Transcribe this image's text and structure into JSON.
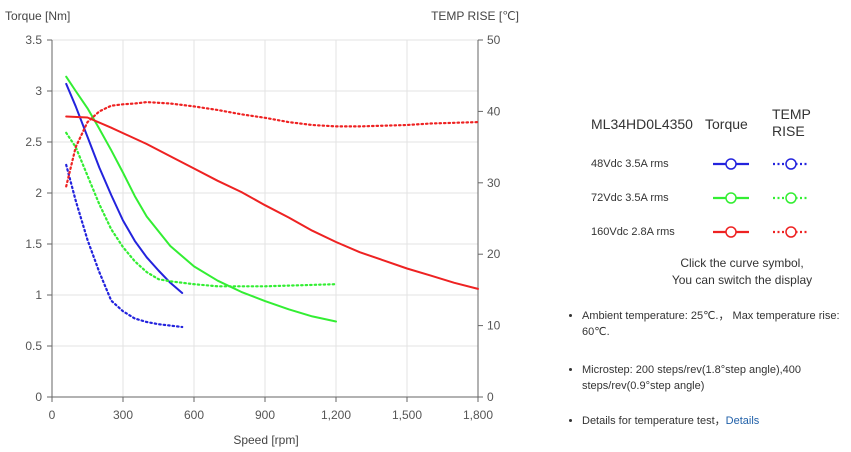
{
  "chart_data": {
    "type": "line",
    "xlabel": "Speed [rpm]",
    "ylabel_left": "Torque  [Nm]",
    "ylabel_right": "TEMP RISE [℃]",
    "xlim": [
      0,
      1800
    ],
    "ylim_left": [
      0,
      3.5
    ],
    "ylim_right": [
      0,
      50
    ],
    "x_ticks": [
      0,
      300,
      600,
      900,
      1200,
      1500,
      1800
    ],
    "x_tick_labels": [
      "0",
      "300",
      "600",
      "900",
      "1,200",
      "1,500",
      "1,800"
    ],
    "y_left_ticks": [
      0,
      0.5,
      1,
      1.5,
      2,
      2.5,
      3,
      3.5
    ],
    "y_left_tick_labels": [
      "0",
      "0.5",
      "1",
      "1.5",
      "2",
      "2.5",
      "3",
      "3.5"
    ],
    "y_right_ticks": [
      0,
      10,
      20,
      30,
      40,
      50
    ],
    "y_right_tick_labels": [
      "0",
      "10",
      "20",
      "30",
      "40",
      "50"
    ],
    "grid": true,
    "series": [
      {
        "axis": "left",
        "style": "solid",
        "color": "#2323dd",
        "x": [
          60,
          100,
          150,
          200,
          250,
          300,
          350,
          400,
          450,
          500,
          550
        ],
        "y": [
          3.07,
          2.85,
          2.55,
          2.25,
          1.98,
          1.73,
          1.53,
          1.37,
          1.24,
          1.12,
          1.02
        ]
      },
      {
        "axis": "right",
        "style": "dotted",
        "color": "#2323dd",
        "x": [
          60,
          100,
          150,
          200,
          250,
          300,
          350,
          400,
          450,
          500,
          550
        ],
        "y": [
          32.5,
          27.5,
          22.0,
          17.5,
          13.5,
          12.0,
          11.0,
          10.5,
          10.2,
          10.0,
          9.8
        ]
      },
      {
        "axis": "left",
        "style": "solid",
        "color": "#33ee33",
        "x": [
          60,
          100,
          150,
          200,
          250,
          300,
          350,
          400,
          500,
          600,
          700,
          800,
          900,
          1000,
          1100,
          1200
        ],
        "y": [
          3.14,
          3.0,
          2.83,
          2.63,
          2.42,
          2.2,
          1.97,
          1.77,
          1.48,
          1.28,
          1.14,
          1.03,
          0.94,
          0.86,
          0.79,
          0.74
        ]
      },
      {
        "axis": "right",
        "style": "dotted",
        "color": "#33ee33",
        "x": [
          60,
          100,
          150,
          200,
          250,
          300,
          350,
          400,
          450,
          500,
          600,
          700,
          800,
          900,
          1000,
          1100,
          1200
        ],
        "y": [
          37.0,
          35.0,
          31.0,
          27.0,
          23.5,
          21.0,
          19.0,
          17.5,
          16.5,
          16.2,
          15.8,
          15.5,
          15.5,
          15.5,
          15.6,
          15.7,
          15.8
        ]
      },
      {
        "axis": "left",
        "style": "solid",
        "color": "#ee2222",
        "x": [
          60,
          150,
          250,
          400,
          500,
          600,
          700,
          800,
          900,
          1000,
          1100,
          1200,
          1300,
          1400,
          1500,
          1600,
          1700,
          1800
        ],
        "y": [
          2.75,
          2.74,
          2.64,
          2.48,
          2.36,
          2.24,
          2.12,
          2.01,
          1.88,
          1.76,
          1.63,
          1.52,
          1.42,
          1.34,
          1.26,
          1.19,
          1.12,
          1.06
        ]
      },
      {
        "axis": "right",
        "style": "dotted",
        "color": "#ee2222",
        "x": [
          60,
          100,
          150,
          200,
          250,
          300,
          350,
          400,
          500,
          600,
          700,
          800,
          900,
          1000,
          1100,
          1200,
          1300,
          1400,
          1500,
          1600,
          1700,
          1800
        ],
        "y": [
          29.5,
          35.0,
          38.5,
          40.0,
          40.8,
          41.0,
          41.1,
          41.3,
          41.1,
          40.7,
          40.2,
          39.6,
          39.1,
          38.5,
          38.1,
          37.9,
          37.9,
          38.0,
          38.1,
          38.3,
          38.4,
          38.5
        ]
      }
    ]
  },
  "legend": {
    "model": "ML34HD0L4350",
    "torque_header": "Torque",
    "temp_header": "TEMP RISE",
    "rows": [
      {
        "label": "48Vdc   3.5A rms",
        "color": "#2323dd"
      },
      {
        "label": "72Vdc   3.5A rms",
        "color": "#33ee33"
      },
      {
        "label": "160Vdc   2.8A rms",
        "color": "#ee2222"
      }
    ],
    "hint_line1": "Click the curve symbol,",
    "hint_line2": "You can switch the display"
  },
  "notes": {
    "ambient": "Ambient temperature: 25℃.， Max temperature rise: 60℃.",
    "microstep": "Microstep: 200 steps/rev(1.8°step angle),400 steps/rev(0.9°step angle)",
    "details_text": "Details for temperature test，",
    "details_link": "Details"
  }
}
